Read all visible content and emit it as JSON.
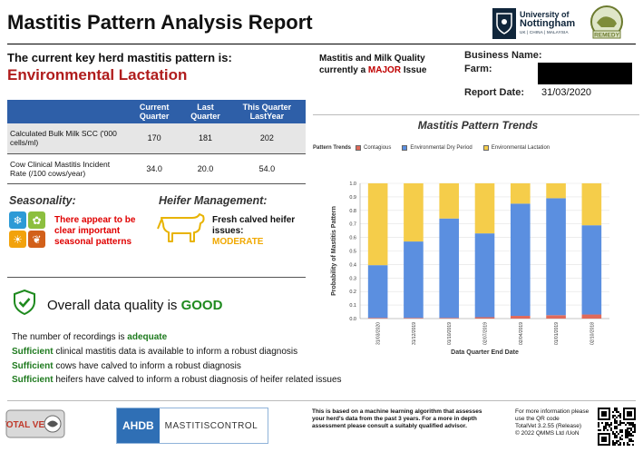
{
  "header": {
    "title": "Mastitis Pattern Analysis Report",
    "uon_name": "University of",
    "uon_name2": "Nottingham",
    "uon_sub": "UK | CHINA | MALAYSIA",
    "remedy": "REMEDY"
  },
  "key_pattern": {
    "label": "The current key herd mastitis pattern is:",
    "value": "Environmental Lactation"
  },
  "quality": {
    "line1": "Mastitis and Milk Quality",
    "line2_pre": "currently a ",
    "line2_major": "MAJOR",
    "line2_post": " Issue"
  },
  "business": {
    "name_label": "Business Name:",
    "farm_label": "Farm:",
    "date_label": "Report Date:",
    "date_value": "31/03/2020"
  },
  "table": {
    "headers": [
      "",
      "Current Quarter",
      "Last Quarter",
      "This Quarter LastYear"
    ],
    "rows": [
      [
        "Calculated Bulk Milk SCC ('000 cells/ml)",
        "170",
        "181",
        "202"
      ],
      [
        "Cow Clinical Mastitis Incident Rate (/100 cows/year)",
        "34.0",
        "20.0",
        "54.0"
      ]
    ]
  },
  "seasonality": {
    "title": "Seasonality:",
    "text": "There appear to be clear important seasonal patterns"
  },
  "heifer": {
    "title": "Heifer Management:",
    "text": "Fresh calved heifer issues:",
    "level": "MODERATE"
  },
  "data_quality": {
    "pre": "Overall data quality is ",
    "value": "GOOD",
    "l1_pre": "The number of recordings is ",
    "l1_green": "adequate",
    "l2_green": "Sufficient",
    "l2_post": " clinical mastitis data is available to inform a robust diagnosis",
    "l3_green": "Sufficient",
    "l3_post": " cows have calved to inform a robust diagnosis",
    "l4_green": "Sufficient",
    "l4_post": " heifers have calved to inform a robust diagnosis of heifer related issues"
  },
  "chart_title": "Mastitis Pattern Trends",
  "chart_data": {
    "type": "bar",
    "stacked": true,
    "title": "",
    "legend_title": "Pattern Trends",
    "xlabel": "Data Quarter End Date",
    "ylabel": "Probability of Mastitis Pattern",
    "ylim": [
      0,
      1
    ],
    "yticks": [
      "0.0",
      "0.1",
      "0.2",
      "0.3",
      "0.4",
      "0.5",
      "0.6",
      "0.7",
      "0.8",
      "0.9",
      "1.0"
    ],
    "categories": [
      "31/03/2020",
      "31/12/2019",
      "01/10/2019",
      "02/07/2019",
      "02/04/2019",
      "01/01/2019",
      "02/10/2018"
    ],
    "series": [
      {
        "name": "Contagious",
        "color": "#e06a5a",
        "values": [
          0.005,
          0.005,
          0.005,
          0.01,
          0.02,
          0.025,
          0.03
        ]
      },
      {
        "name": "Environmental Dry Period",
        "color": "#5b8fe0",
        "values": [
          0.39,
          0.565,
          0.735,
          0.62,
          0.83,
          0.865,
          0.66
        ]
      },
      {
        "name": "Environmental Lactation",
        "color": "#f5cd4a",
        "values": [
          0.605,
          0.43,
          0.26,
          0.37,
          0.15,
          0.11,
          0.31
        ]
      }
    ],
    "grid": true,
    "legend_position": "top"
  },
  "footer": {
    "totalvet": "TOTAL VET",
    "ahdb": "AHDB",
    "ahdb_program": "MASTITISCONTROL",
    "note": "This is based on a machine learning algorithm that assesses your herd's data from the past 3 years. For a more in depth assessment please consult a suitably qualified advisor.",
    "info1": "For more information please use the QR code",
    "info2": "TotalVet 3.2.55 (Release)",
    "info3": "© 2022 QMMS Ltd /UoN"
  }
}
